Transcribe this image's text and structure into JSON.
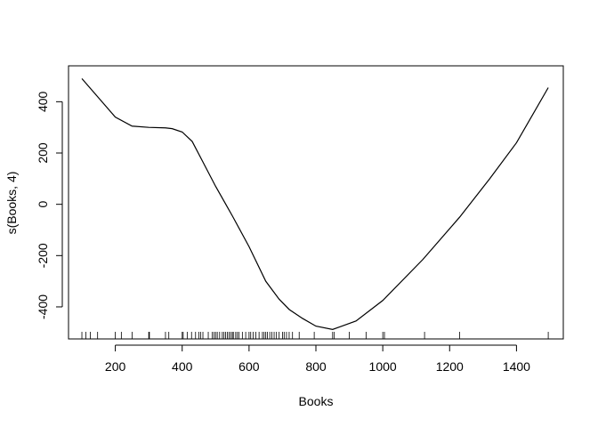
{
  "chart_data": {
    "type": "line",
    "title": "",
    "xlabel": "Books",
    "ylabel": "s(Books, 4)",
    "xlim": [
      60,
      1540
    ],
    "ylim": [
      -525,
      540
    ],
    "x_ticks": [
      200,
      400,
      600,
      800,
      1000,
      1200,
      1400
    ],
    "y_ticks": [
      -400,
      -200,
      0,
      200,
      400
    ],
    "grid": false,
    "series": [
      {
        "x": [
          100,
          150,
          200,
          250,
          300,
          350,
          370,
          400,
          430,
          460,
          500,
          550,
          600,
          650,
          690,
          720,
          760,
          800,
          850,
          920,
          1000,
          1120,
          1230,
          1320,
          1400,
          1495
        ],
        "y": [
          490,
          415,
          340,
          305,
          300,
          298,
          295,
          282,
          245,
          170,
          70,
          -45,
          -165,
          -300,
          -370,
          -410,
          -445,
          -475,
          -488,
          -455,
          -375,
          -215,
          -50,
          100,
          240,
          455
        ]
      }
    ],
    "rug": [
      100,
      112,
      125,
      147,
      200,
      218,
      250,
      300,
      302,
      350,
      360,
      400,
      403,
      415,
      428,
      440,
      450,
      455,
      462,
      478,
      490,
      495,
      500,
      505,
      512,
      520,
      525,
      530,
      535,
      540,
      545,
      550,
      553,
      560,
      565,
      570,
      580,
      590,
      600,
      605,
      612,
      620,
      630,
      640,
      645,
      650,
      655,
      662,
      668,
      675,
      682,
      690,
      700,
      705,
      712,
      720,
      730,
      750,
      795,
      850,
      855,
      900,
      950,
      1000,
      1005,
      1125,
      1230,
      1495
    ]
  }
}
